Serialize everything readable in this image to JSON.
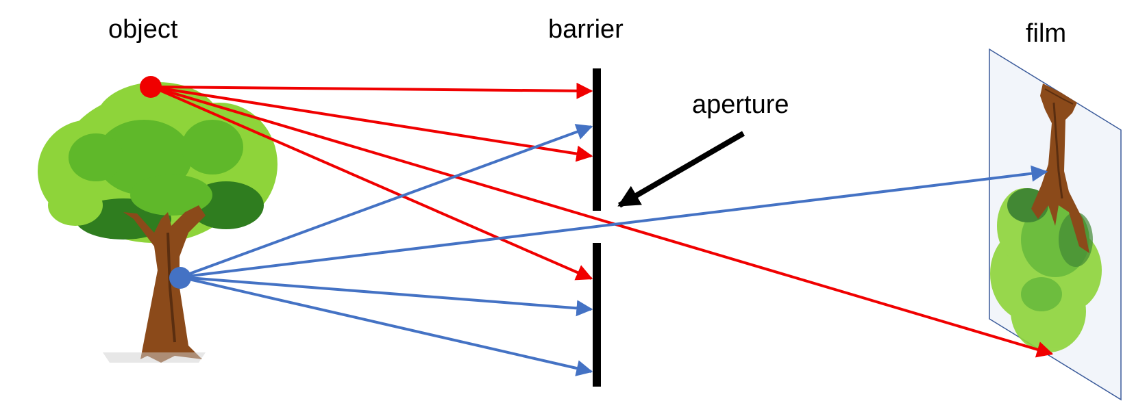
{
  "labels": {
    "object": "object",
    "barrier": "barrier",
    "film": "film",
    "aperture": "aperture"
  },
  "colors": {
    "red_ray": "#f00000",
    "blue_ray": "#4472c4",
    "barrier": "#000000",
    "film_fill": "#f2f5fa",
    "film_border": "#3a5a9a",
    "foliage_light": "#8ed43a",
    "foliage_mid": "#5fb82a",
    "foliage_dark": "#2f7d1f",
    "trunk": "#8b4a1a",
    "trunk_dark": "#5a2e10"
  },
  "icons": {
    "tree": "tree-icon",
    "inverted_tree": "inverted-tree-icon"
  }
}
